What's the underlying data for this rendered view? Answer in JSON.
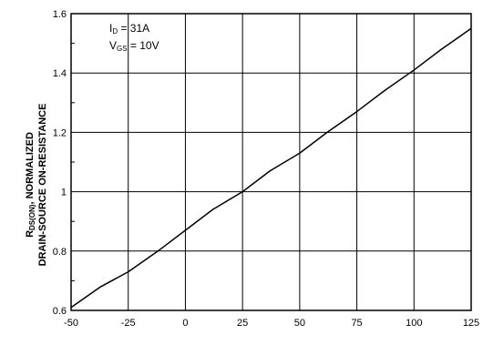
{
  "chart_data": {
    "type": "line",
    "title": "",
    "xlabel": "",
    "ylabel_line1_main": "R",
    "ylabel_line1_sub": "DS(ON)",
    "ylabel_line1_rest": ", NORMALIZED",
    "ylabel_line2": "DRAIN-SOURCE ON-RESISTANCE",
    "xlim": [
      -50,
      125
    ],
    "ylim": [
      0.6,
      1.6
    ],
    "x_ticks": [
      -50,
      -25,
      0,
      25,
      50,
      75,
      100,
      125
    ],
    "x_tick_labels": [
      "-50",
      "-25",
      "0",
      "25",
      "50",
      "75",
      "100",
      "125"
    ],
    "y_ticks": [
      0.6,
      0.8,
      1.0,
      1.2,
      1.4,
      1.6
    ],
    "y_tick_labels": [
      "0.6",
      "0.8",
      "1",
      "1.2",
      "1.4",
      "1.6"
    ],
    "grid": true,
    "annotations": {
      "id_main": "I",
      "id_sub": "D",
      "id_value": " = 31A",
      "vgs_main": "V",
      "vgs_sub": "GS",
      "vgs_value": " = 10V"
    },
    "series": [
      {
        "x": [
          -50,
          -37,
          -25,
          -12,
          0,
          12,
          25,
          37,
          50,
          62,
          75,
          87,
          100,
          112,
          125
        ],
        "y": [
          0.61,
          0.68,
          0.73,
          0.8,
          0.87,
          0.94,
          1.0,
          1.07,
          1.13,
          1.2,
          1.27,
          1.34,
          1.41,
          1.48,
          1.55
        ]
      }
    ]
  },
  "colors": {
    "line": "#000000",
    "grid": "#000000",
    "background": "#ffffff"
  }
}
